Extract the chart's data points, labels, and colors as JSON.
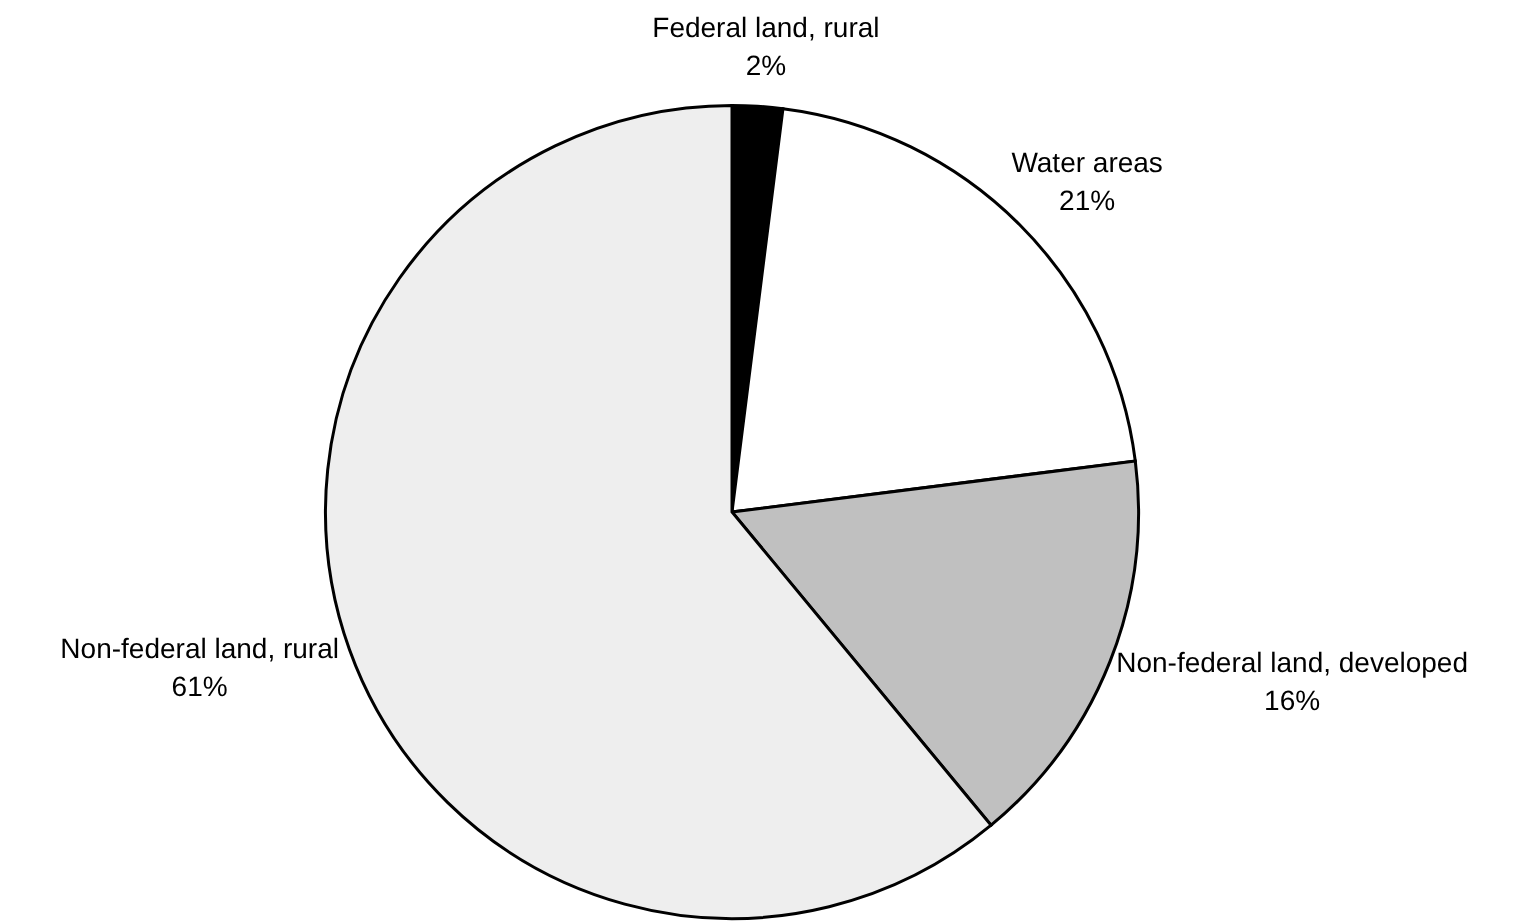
{
  "chart_data": {
    "type": "pie",
    "categories": [
      "Federal land, rural",
      "Water areas",
      "Non-federal land, developed",
      "Non-federal land, rural"
    ],
    "values": [
      2,
      21,
      16,
      61
    ],
    "colors": [
      "#000000",
      "#ffffff",
      "#c0c0c0",
      "#eeeeee"
    ],
    "value_labels": [
      "2%",
      "21%",
      "16%",
      "61%"
    ],
    "legend": false
  }
}
